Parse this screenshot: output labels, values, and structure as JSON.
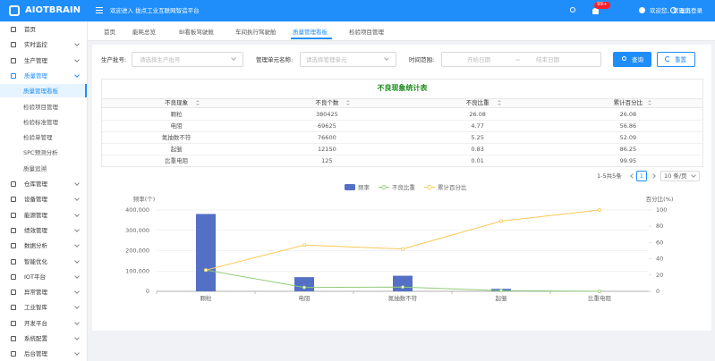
{
  "header": {
    "logo": "AIOTBRAIN",
    "welcome": "欢迎进入 拢点工业互联网智造平台",
    "badge": "99+",
    "user": "欢迎您、管理员",
    "logout": "退出登录"
  },
  "sidebar": {
    "menu_top": [
      "首页",
      "实时监控",
      "生产管理",
      "质量管理"
    ],
    "submenu": [
      "质量管理看板",
      "检验项目管理",
      "检验标准管理",
      "检验单管理",
      "SPC预测分析",
      "质量追溯"
    ],
    "menu_bottom": [
      "仓库管理",
      "设备管理",
      "能源管理",
      "绩效管理",
      "数据分析",
      "智能优化",
      "IOT平台",
      "异常管理",
      "工业智库",
      "开发平台",
      "系统配置",
      "后台管理"
    ]
  },
  "tabs": [
    "首页",
    "能耗总览",
    "BI看板驾驶舱",
    "车间执行驾驶舱",
    "质量管理看板",
    "检验项目管理"
  ],
  "filters": {
    "batch_label": "生产批号:",
    "batch_placeholder": "请选择生产批号",
    "unit_label": "管理单元名称:",
    "unit_placeholder": "请选择管理单元",
    "time_label": "时间范围:",
    "start": "开始日期",
    "separator": "~",
    "end": "结束日期",
    "query": "查询",
    "reset": "重置"
  },
  "table": {
    "title": "不良现象统计表",
    "headers": [
      "不良现象",
      "不良个数",
      "不良比重",
      "累计百分比"
    ]
  },
  "pagination": {
    "total": "1-5共5条",
    "page": 1,
    "size": "10 条/页"
  },
  "chart_data": {
    "type": "bar",
    "categories": [
      "颗粒",
      "电阻",
      "氮抽数不符",
      "起皱",
      "比重电阻"
    ],
    "series": [
      {
        "name": "频率",
        "type": "bar",
        "color": "#5470c6",
        "values": [
          380425,
          69625,
          76600,
          12150,
          125
        ]
      },
      {
        "name": "不良比重",
        "type": "line",
        "axis": "y2",
        "color": "#91cc75",
        "values": [
          26.08,
          4.77,
          5.25,
          0.83,
          0.01
        ]
      },
      {
        "name": "累计百分比",
        "type": "line",
        "axis": "y2",
        "color": "#fac858",
        "values": [
          26.08,
          56.86,
          52.09,
          86.25,
          99.95
        ]
      }
    ],
    "ylabel": "频率(个)",
    "y2label": "百分比(%)",
    "ylim": [
      0,
      400000
    ],
    "yticks": [
      0,
      {
        "value": 100000,
        "label": "100,000"
      },
      {
        "value": 200000,
        "label": "200,000"
      },
      {
        "value": 300000,
        "label": "300,000"
      },
      {
        "value": 400000,
        "label": "400,000"
      }
    ],
    "y2lim": [
      0,
      100
    ],
    "y2ticks": [
      0,
      20,
      40,
      60,
      80,
      100
    ],
    "grid": true,
    "legend": "top"
  }
}
